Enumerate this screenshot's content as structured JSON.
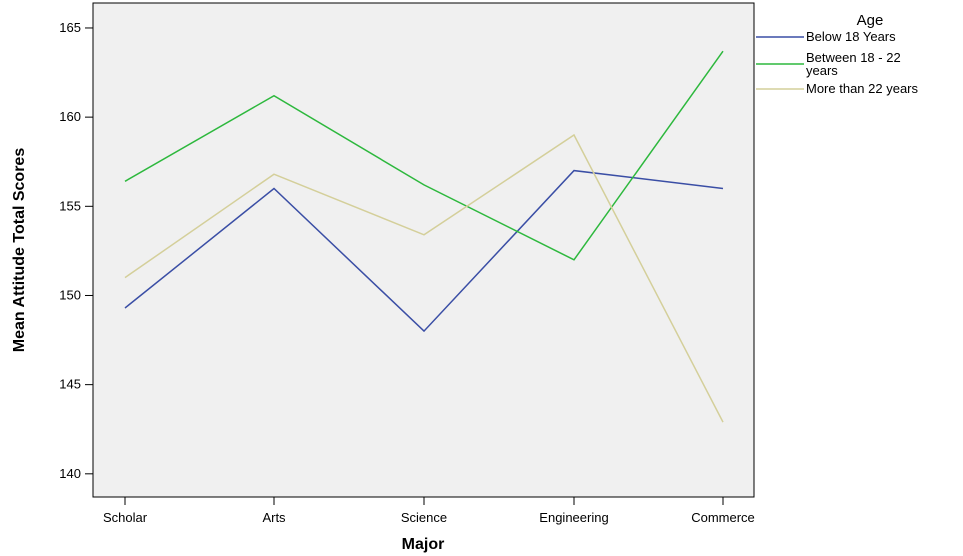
{
  "chart_data": {
    "type": "line",
    "title": "",
    "xlabel": "Major",
    "ylabel": "Mean Attitude Total Scores",
    "categories": [
      "Scholar",
      "Arts",
      "Science",
      "Engineering",
      "Commerce"
    ],
    "ylim": [
      138.7,
      166.4
    ],
    "yticks": [
      140,
      145,
      150,
      155,
      160,
      165
    ],
    "grid": false,
    "legend": {
      "title": "Age",
      "placement": "top-right outside"
    },
    "series": [
      {
        "name": "Below 18 Years",
        "color": "#3a4ea5",
        "values": [
          149.3,
          156.0,
          148.0,
          157.0,
          156.0
        ]
      },
      {
        "name": "Between 18 - 22 years",
        "name_lines": [
          "Between 18 - 22",
          "years"
        ],
        "color": "#2db83d",
        "values": [
          156.4,
          161.2,
          156.2,
          152.0,
          163.7
        ]
      },
      {
        "name": "More than 22 years",
        "color": "#d4cf9a",
        "values": [
          151.0,
          156.8,
          153.4,
          159.0,
          142.9
        ]
      }
    ]
  }
}
